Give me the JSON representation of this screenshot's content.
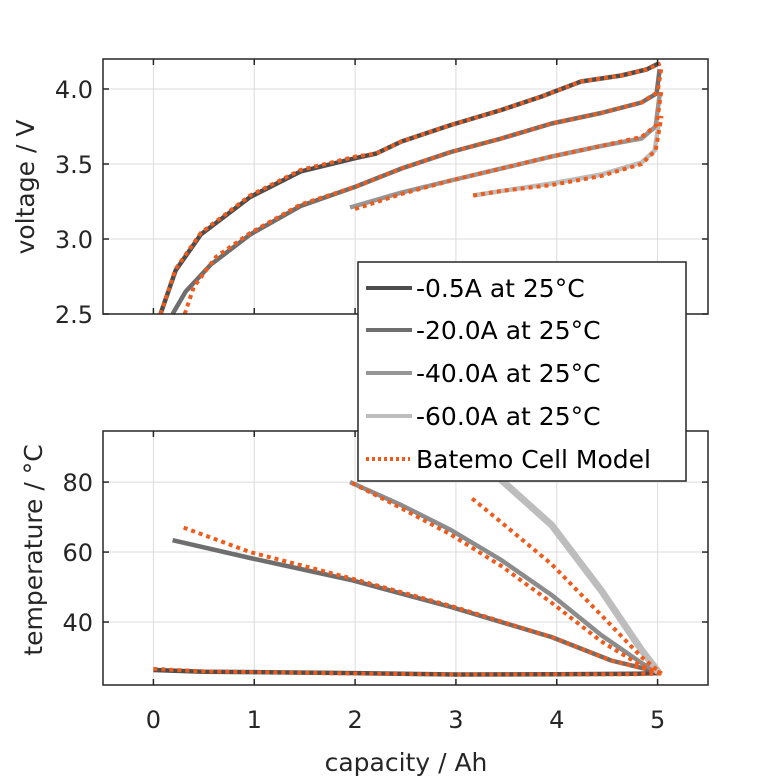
{
  "chart_data": [
    {
      "type": "line",
      "panel": "top",
      "xlabel": "capacity / Ah",
      "ylabel": "voltage / V",
      "xlim": [
        -0.5,
        5.5
      ],
      "ylim": [
        2.5,
        4.2
      ],
      "xticks": [
        0,
        1,
        2,
        3,
        4,
        5
      ],
      "yticks": [
        2.5,
        3.0,
        3.5,
        4.0
      ],
      "ytick_labels": [
        "2.5",
        "3.0",
        "3.5",
        "4.0"
      ],
      "grid": true,
      "series": [
        {
          "name": "-0.5A at 25°C",
          "color": "#4d4d4d",
          "style": "solid",
          "x": [
            0.07,
            0.22,
            0.47,
            0.96,
            1.46,
            2.01,
            2.21,
            2.46,
            2.95,
            3.45,
            3.85,
            4.24,
            4.64,
            4.89,
            5.01
          ],
          "y": [
            2.5,
            2.79,
            3.03,
            3.28,
            3.45,
            3.54,
            3.57,
            3.65,
            3.76,
            3.86,
            3.95,
            4.05,
            4.09,
            4.13,
            4.17
          ]
        },
        {
          "name": "-20.0A at 25°C",
          "color": "#6e6e6e",
          "style": "solid",
          "x": [
            0.19,
            0.32,
            0.57,
            0.96,
            1.46,
            2.01,
            2.46,
            2.95,
            3.45,
            3.95,
            4.44,
            4.84,
            4.99,
            5.02
          ],
          "y": [
            2.5,
            2.65,
            2.83,
            3.03,
            3.22,
            3.35,
            3.47,
            3.58,
            3.67,
            3.77,
            3.84,
            3.91,
            3.97,
            4.13
          ]
        },
        {
          "name": "-40.0A at 25°C",
          "color": "#969696",
          "style": "solid",
          "x": [
            1.95,
            2.46,
            2.95,
            3.45,
            3.95,
            4.44,
            4.84,
            4.98,
            5.02
          ],
          "y": [
            3.21,
            3.31,
            3.39,
            3.47,
            3.55,
            3.62,
            3.67,
            3.75,
            3.96
          ]
        },
        {
          "name": "-60.0A at 25°C",
          "color": "#bdbdbd",
          "style": "solid",
          "x": [
            3.17,
            3.45,
            3.95,
            4.44,
            4.84,
            4.97,
            5.01
          ],
          "y": [
            3.29,
            3.32,
            3.37,
            3.43,
            3.51,
            3.59,
            3.76
          ]
        },
        {
          "name": "Batemo Cell Model (-0.5A)",
          "color": "#f05a1a",
          "style": "dotted",
          "x": [
            0.07,
            0.22,
            0.47,
            0.96,
            1.46,
            2.01,
            2.21,
            2.46,
            2.95,
            3.45,
            3.85,
            4.24,
            4.64,
            4.89,
            5.03
          ],
          "y": [
            2.5,
            2.8,
            3.04,
            3.29,
            3.46,
            3.55,
            3.57,
            3.65,
            3.76,
            3.86,
            3.95,
            4.05,
            4.09,
            4.13,
            4.17
          ]
        },
        {
          "name": "Batemo Cell Model (-20.0A)",
          "color": "#f05a1a",
          "style": "dotted",
          "x": [
            0.31,
            0.4,
            0.62,
            0.96,
            1.46,
            2.01,
            2.46,
            2.95,
            3.45,
            3.95,
            4.44,
            4.84,
            5.0,
            5.04
          ],
          "y": [
            2.5,
            2.68,
            2.88,
            3.04,
            3.23,
            3.35,
            3.47,
            3.58,
            3.67,
            3.77,
            3.84,
            3.91,
            3.98,
            4.15
          ]
        },
        {
          "name": "Batemo Cell Model (-40.0A)",
          "color": "#f05a1a",
          "style": "dotted",
          "x": [
            2.0,
            2.46,
            2.95,
            3.45,
            3.95,
            4.44,
            4.84,
            4.99,
            5.04
          ],
          "y": [
            3.2,
            3.3,
            3.39,
            3.47,
            3.55,
            3.62,
            3.68,
            3.76,
            4.0
          ]
        },
        {
          "name": "Batemo Cell Model (-60.0A)",
          "color": "#f05a1a",
          "style": "dotted",
          "x": [
            3.17,
            3.45,
            3.95,
            4.44,
            4.84,
            4.98,
            5.04
          ],
          "y": [
            3.29,
            3.32,
            3.36,
            3.42,
            3.5,
            3.59,
            3.82
          ]
        }
      ]
    },
    {
      "type": "line",
      "panel": "bottom",
      "xlabel": "capacity / Ah",
      "ylabel": "temperature / °C",
      "xlim": [
        -0.5,
        5.5
      ],
      "ylim": [
        22,
        94.6
      ],
      "xticks": [
        0,
        1,
        2,
        3,
        4,
        5
      ],
      "xtick_labels": [
        "0",
        "1",
        "2",
        "3",
        "4",
        "5"
      ],
      "yticks": [
        40,
        60,
        80
      ],
      "ytick_labels": [
        "40",
        "60",
        "80"
      ],
      "grid": true,
      "series": [
        {
          "name": "-0.5A at 25°C",
          "color": "#4d4d4d",
          "style": "solid",
          "x": [
            0.0,
            0.5,
            1.0,
            2.0,
            3.0,
            4.0,
            4.8,
            5.01
          ],
          "y": [
            26.3,
            25.8,
            25.7,
            25.4,
            25.0,
            25.1,
            25.2,
            25.4
          ]
        },
        {
          "name": "-20.0A at 25°C",
          "color": "#6e6e6e",
          "style": "solid",
          "x": [
            0.19,
            0.96,
            1.96,
            2.95,
            3.95,
            4.54,
            5.01
          ],
          "y": [
            63.4,
            58.3,
            52.0,
            44.3,
            35.7,
            29.0,
            25.7
          ]
        },
        {
          "name": "-40.0A at 25°C",
          "color": "#8c8c8c",
          "style": "solid",
          "x": [
            1.95,
            2.46,
            2.95,
            3.45,
            3.95,
            4.44,
            4.84,
            5.01
          ],
          "y": [
            80.0,
            73.4,
            66.3,
            57.7,
            47.7,
            36.3,
            28.3,
            25.4
          ]
        },
        {
          "name": "-60.0A at 25°C",
          "color": "#bdbdbd",
          "style": "solid",
          "x": [
            3.18,
            3.45,
            3.95,
            4.44,
            4.84,
            5.01
          ],
          "y": [
            87.7,
            80.6,
            67.7,
            49.1,
            32.0,
            25.7
          ]
        },
        {
          "name": "Batemo Cell Model (-0.5A)",
          "color": "#f05a1a",
          "style": "dotted",
          "x": [
            0.0,
            0.5,
            1.0,
            2.0,
            3.0,
            4.0,
            4.8,
            5.05
          ],
          "y": [
            26.6,
            25.9,
            25.7,
            25.3,
            25.0,
            25.1,
            25.1,
            25.3
          ]
        },
        {
          "name": "Batemo Cell Model (-20.0A)",
          "color": "#f05a1a",
          "style": "dotted",
          "x": [
            0.3,
            0.96,
            1.96,
            2.95,
            3.95,
            4.54,
            5.04
          ],
          "y": [
            67.0,
            60.0,
            52.5,
            44.6,
            35.7,
            29.0,
            25.4
          ]
        },
        {
          "name": "Batemo Cell Model (-40.0A)",
          "color": "#f05a1a",
          "style": "dotted",
          "x": [
            1.97,
            2.46,
            2.95,
            3.45,
            3.95,
            4.44,
            4.84,
            5.04
          ],
          "y": [
            79.7,
            72.5,
            65.0,
            56.0,
            45.5,
            34.5,
            27.5,
            25.3
          ]
        },
        {
          "name": "Batemo Cell Model (-60.0A)",
          "color": "#f05a1a",
          "style": "dotted",
          "x": [
            3.16,
            3.45,
            3.95,
            4.44,
            4.84,
            5.04
          ],
          "y": [
            75.3,
            68.5,
            56.5,
            42.0,
            30.0,
            25.3
          ]
        }
      ]
    }
  ],
  "legend": {
    "placement": "center-right",
    "entries": [
      {
        "label": "-0.5A at 25°C",
        "color": "#4d4d4d",
        "style": "solid"
      },
      {
        "label": "-20.0A at 25°C",
        "color": "#6e6e6e",
        "style": "solid"
      },
      {
        "label": "-40.0A at 25°C",
        "color": "#969696",
        "style": "solid"
      },
      {
        "label": "-60.0A at 25°C",
        "color": "#bdbdbd",
        "style": "solid"
      },
      {
        "label": "Batemo Cell Model",
        "color": "#f05a1a",
        "style": "dotted"
      }
    ]
  }
}
